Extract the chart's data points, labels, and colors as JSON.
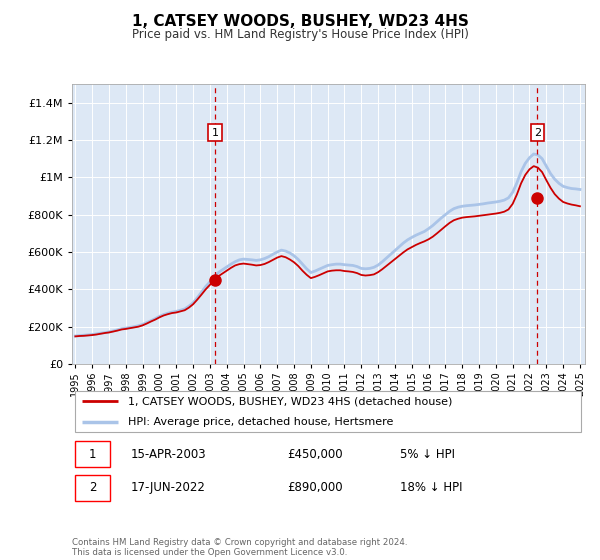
{
  "title": "1, CATSEY WOODS, BUSHEY, WD23 4HS",
  "subtitle": "Price paid vs. HM Land Registry's House Price Index (HPI)",
  "legend_line1": "1, CATSEY WOODS, BUSHEY, WD23 4HS (detached house)",
  "legend_line2": "HPI: Average price, detached house, Hertsmere",
  "annotation1_label": "1",
  "annotation1_date": "15-APR-2003",
  "annotation1_price": "£450,000",
  "annotation1_hpi": "5% ↓ HPI",
  "annotation1_year": 2003.3,
  "annotation1_value": 450000,
  "annotation2_label": "2",
  "annotation2_date": "17-JUN-2022",
  "annotation2_price": "£890,000",
  "annotation2_hpi": "18% ↓ HPI",
  "annotation2_year": 2022.46,
  "annotation2_value": 890000,
  "footer": "Contains HM Land Registry data © Crown copyright and database right 2024.\nThis data is licensed under the Open Government Licence v3.0.",
  "line_color_red": "#cc0000",
  "line_color_blue": "#aac4e8",
  "bg_color": "#dde8f5",
  "ylim_max": 1500000,
  "xlim_start": 1994.8,
  "xlim_end": 2025.3,
  "yticks": [
    0,
    200000,
    400000,
    600000,
    800000,
    1000000,
    1200000,
    1400000
  ],
  "xticks": [
    1995,
    1996,
    1997,
    1998,
    1999,
    2000,
    2001,
    2002,
    2003,
    2004,
    2005,
    2006,
    2007,
    2008,
    2009,
    2010,
    2011,
    2012,
    2013,
    2014,
    2015,
    2016,
    2017,
    2018,
    2019,
    2020,
    2021,
    2022,
    2023,
    2024,
    2025
  ],
  "years_data": [
    1995.0,
    1995.25,
    1995.5,
    1995.75,
    1996.0,
    1996.25,
    1996.5,
    1996.75,
    1997.0,
    1997.25,
    1997.5,
    1997.75,
    1998.0,
    1998.25,
    1998.5,
    1998.75,
    1999.0,
    1999.25,
    1999.5,
    1999.75,
    2000.0,
    2000.25,
    2000.5,
    2000.75,
    2001.0,
    2001.25,
    2001.5,
    2001.75,
    2002.0,
    2002.25,
    2002.5,
    2002.75,
    2003.0,
    2003.25,
    2003.5,
    2003.75,
    2004.0,
    2004.25,
    2004.5,
    2004.75,
    2005.0,
    2005.25,
    2005.5,
    2005.75,
    2006.0,
    2006.25,
    2006.5,
    2006.75,
    2007.0,
    2007.25,
    2007.5,
    2007.75,
    2008.0,
    2008.25,
    2008.5,
    2008.75,
    2009.0,
    2009.25,
    2009.5,
    2009.75,
    2010.0,
    2010.25,
    2010.5,
    2010.75,
    2011.0,
    2011.25,
    2011.5,
    2011.75,
    2012.0,
    2012.25,
    2012.5,
    2012.75,
    2013.0,
    2013.25,
    2013.5,
    2013.75,
    2014.0,
    2014.25,
    2014.5,
    2014.75,
    2015.0,
    2015.25,
    2015.5,
    2015.75,
    2016.0,
    2016.25,
    2016.5,
    2016.75,
    2017.0,
    2017.25,
    2017.5,
    2017.75,
    2018.0,
    2018.25,
    2018.5,
    2018.75,
    2019.0,
    2019.25,
    2019.5,
    2019.75,
    2020.0,
    2020.25,
    2020.5,
    2020.75,
    2021.0,
    2021.25,
    2021.5,
    2021.75,
    2022.0,
    2022.25,
    2022.5,
    2022.75,
    2023.0,
    2023.25,
    2023.5,
    2023.75,
    2024.0,
    2024.25,
    2024.5,
    2024.75,
    2025.0
  ],
  "hpi_values": [
    150000,
    152000,
    154000,
    156000,
    158000,
    161000,
    165000,
    168000,
    172000,
    177000,
    183000,
    189000,
    192000,
    196000,
    200000,
    205000,
    212000,
    222000,
    232000,
    243000,
    255000,
    265000,
    272000,
    278000,
    282000,
    288000,
    295000,
    310000,
    328000,
    355000,
    385000,
    415000,
    440000,
    465000,
    490000,
    505000,
    520000,
    535000,
    548000,
    558000,
    562000,
    560000,
    558000,
    555000,
    558000,
    565000,
    575000,
    588000,
    600000,
    610000,
    605000,
    595000,
    580000,
    560000,
    535000,
    510000,
    490000,
    498000,
    508000,
    518000,
    528000,
    532000,
    535000,
    535000,
    532000,
    530000,
    528000,
    522000,
    512000,
    510000,
    512000,
    518000,
    530000,
    548000,
    568000,
    588000,
    608000,
    628000,
    648000,
    665000,
    678000,
    690000,
    700000,
    710000,
    725000,
    742000,
    762000,
    782000,
    800000,
    818000,
    832000,
    840000,
    845000,
    848000,
    850000,
    852000,
    855000,
    858000,
    862000,
    865000,
    868000,
    872000,
    878000,
    890000,
    920000,
    970000,
    1030000,
    1075000,
    1105000,
    1125000,
    1120000,
    1100000,
    1060000,
    1020000,
    990000,
    968000,
    952000,
    945000,
    940000,
    938000,
    935000
  ],
  "red_values": [
    148000,
    150000,
    151000,
    153000,
    155000,
    158000,
    162000,
    166000,
    169000,
    174000,
    179000,
    185000,
    188000,
    192000,
    196000,
    200000,
    207000,
    217000,
    228000,
    238000,
    250000,
    260000,
    267000,
    273000,
    276000,
    282000,
    288000,
    302000,
    320000,
    345000,
    372000,
    400000,
    424000,
    447000,
    470000,
    485000,
    500000,
    515000,
    528000,
    535000,
    538000,
    535000,
    532000,
    528000,
    530000,
    536000,
    546000,
    558000,
    570000,
    578000,
    572000,
    560000,
    545000,
    525000,
    500000,
    478000,
    460000,
    467000,
    476000,
    486000,
    496000,
    500000,
    502000,
    502000,
    498000,
    496000,
    493000,
    487000,
    477000,
    474000,
    476000,
    480000,
    492000,
    508000,
    526000,
    544000,
    562000,
    580000,
    598000,
    614000,
    626000,
    638000,
    648000,
    657000,
    668000,
    682000,
    700000,
    719000,
    738000,
    756000,
    770000,
    778000,
    784000,
    787000,
    789000,
    791000,
    794000,
    797000,
    800000,
    803000,
    806000,
    810000,
    816000,
    828000,
    858000,
    908000,
    968000,
    1013000,
    1043000,
    1060000,
    1052000,
    1028000,
    985000,
    944000,
    910000,
    886000,
    868000,
    860000,
    854000,
    850000,
    845000
  ]
}
